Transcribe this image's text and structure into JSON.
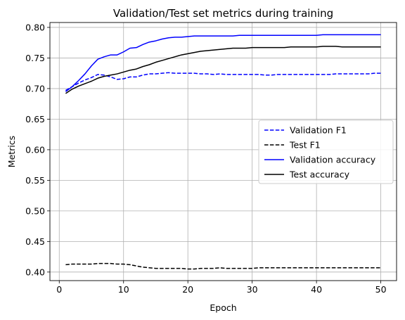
{
  "chart_data": {
    "type": "line",
    "title": "Validation/Test set metrics during training",
    "xlabel": "Epoch",
    "ylabel": "Metrics",
    "xlim": [
      -1.45,
      52.45
    ],
    "ylim": [
      0.386,
      0.808
    ],
    "xticks": [
      0,
      10,
      20,
      30,
      40,
      50
    ],
    "yticks": [
      0.4,
      0.45,
      0.5,
      0.55,
      0.6,
      0.65,
      0.7,
      0.75,
      0.8
    ],
    "ytick_labels": [
      "0.40",
      "0.45",
      "0.50",
      "0.55",
      "0.60",
      "0.65",
      "0.70",
      "0.75",
      "0.80"
    ],
    "xtick_labels": [
      "0",
      "10",
      "20",
      "30",
      "40",
      "50"
    ],
    "grid": true,
    "legend_position": "center-right",
    "x": [
      1,
      2,
      3,
      4,
      5,
      6,
      7,
      8,
      9,
      10,
      11,
      12,
      13,
      14,
      15,
      16,
      17,
      18,
      19,
      20,
      21,
      22,
      23,
      24,
      25,
      26,
      27,
      28,
      29,
      30,
      31,
      32,
      33,
      34,
      35,
      36,
      37,
      38,
      39,
      40,
      41,
      42,
      43,
      44,
      45,
      46,
      47,
      48,
      49,
      50
    ],
    "series": [
      {
        "name": "Validation F1",
        "color": "#0000ff",
        "dash": "dashed",
        "values": [
          0.697,
          0.703,
          0.709,
          0.714,
          0.718,
          0.723,
          0.722,
          0.719,
          0.715,
          0.716,
          0.719,
          0.719,
          0.722,
          0.724,
          0.724,
          0.725,
          0.726,
          0.725,
          0.725,
          0.725,
          0.725,
          0.724,
          0.724,
          0.723,
          0.724,
          0.723,
          0.723,
          0.723,
          0.723,
          0.723,
          0.723,
          0.722,
          0.722,
          0.723,
          0.723,
          0.723,
          0.723,
          0.723,
          0.723,
          0.723,
          0.723,
          0.723,
          0.724,
          0.724,
          0.724,
          0.724,
          0.724,
          0.724,
          0.725,
          0.725
        ]
      },
      {
        "name": "Test F1",
        "color": "#000000",
        "dash": "dashed",
        "values": [
          0.412,
          0.413,
          0.413,
          0.413,
          0.413,
          0.414,
          0.414,
          0.414,
          0.413,
          0.413,
          0.412,
          0.41,
          0.408,
          0.407,
          0.406,
          0.406,
          0.406,
          0.406,
          0.406,
          0.405,
          0.405,
          0.406,
          0.406,
          0.406,
          0.407,
          0.406,
          0.406,
          0.406,
          0.406,
          0.406,
          0.407,
          0.407,
          0.407,
          0.407,
          0.407,
          0.407,
          0.407,
          0.407,
          0.407,
          0.407,
          0.407,
          0.407,
          0.407,
          0.407,
          0.407,
          0.407,
          0.407,
          0.407,
          0.407,
          0.407
        ]
      },
      {
        "name": "Validation accuracy",
        "color": "#0000ff",
        "dash": "solid",
        "values": [
          0.695,
          0.703,
          0.713,
          0.724,
          0.737,
          0.748,
          0.752,
          0.755,
          0.755,
          0.76,
          0.766,
          0.767,
          0.772,
          0.776,
          0.778,
          0.781,
          0.783,
          0.784,
          0.784,
          0.785,
          0.786,
          0.786,
          0.786,
          0.786,
          0.786,
          0.786,
          0.786,
          0.787,
          0.787,
          0.787,
          0.787,
          0.787,
          0.787,
          0.787,
          0.787,
          0.787,
          0.787,
          0.787,
          0.787,
          0.787,
          0.788,
          0.788,
          0.788,
          0.788,
          0.788,
          0.788,
          0.788,
          0.788,
          0.788,
          0.788
        ]
      },
      {
        "name": "Test accuracy",
        "color": "#000000",
        "dash": "solid",
        "values": [
          0.692,
          0.699,
          0.704,
          0.708,
          0.712,
          0.717,
          0.72,
          0.722,
          0.724,
          0.727,
          0.73,
          0.732,
          0.736,
          0.739,
          0.743,
          0.746,
          0.749,
          0.752,
          0.755,
          0.757,
          0.759,
          0.761,
          0.762,
          0.763,
          0.764,
          0.765,
          0.766,
          0.766,
          0.766,
          0.767,
          0.767,
          0.767,
          0.767,
          0.767,
          0.767,
          0.768,
          0.768,
          0.768,
          0.768,
          0.768,
          0.769,
          0.769,
          0.769,
          0.768,
          0.768,
          0.768,
          0.768,
          0.768,
          0.768,
          0.768
        ]
      }
    ]
  }
}
